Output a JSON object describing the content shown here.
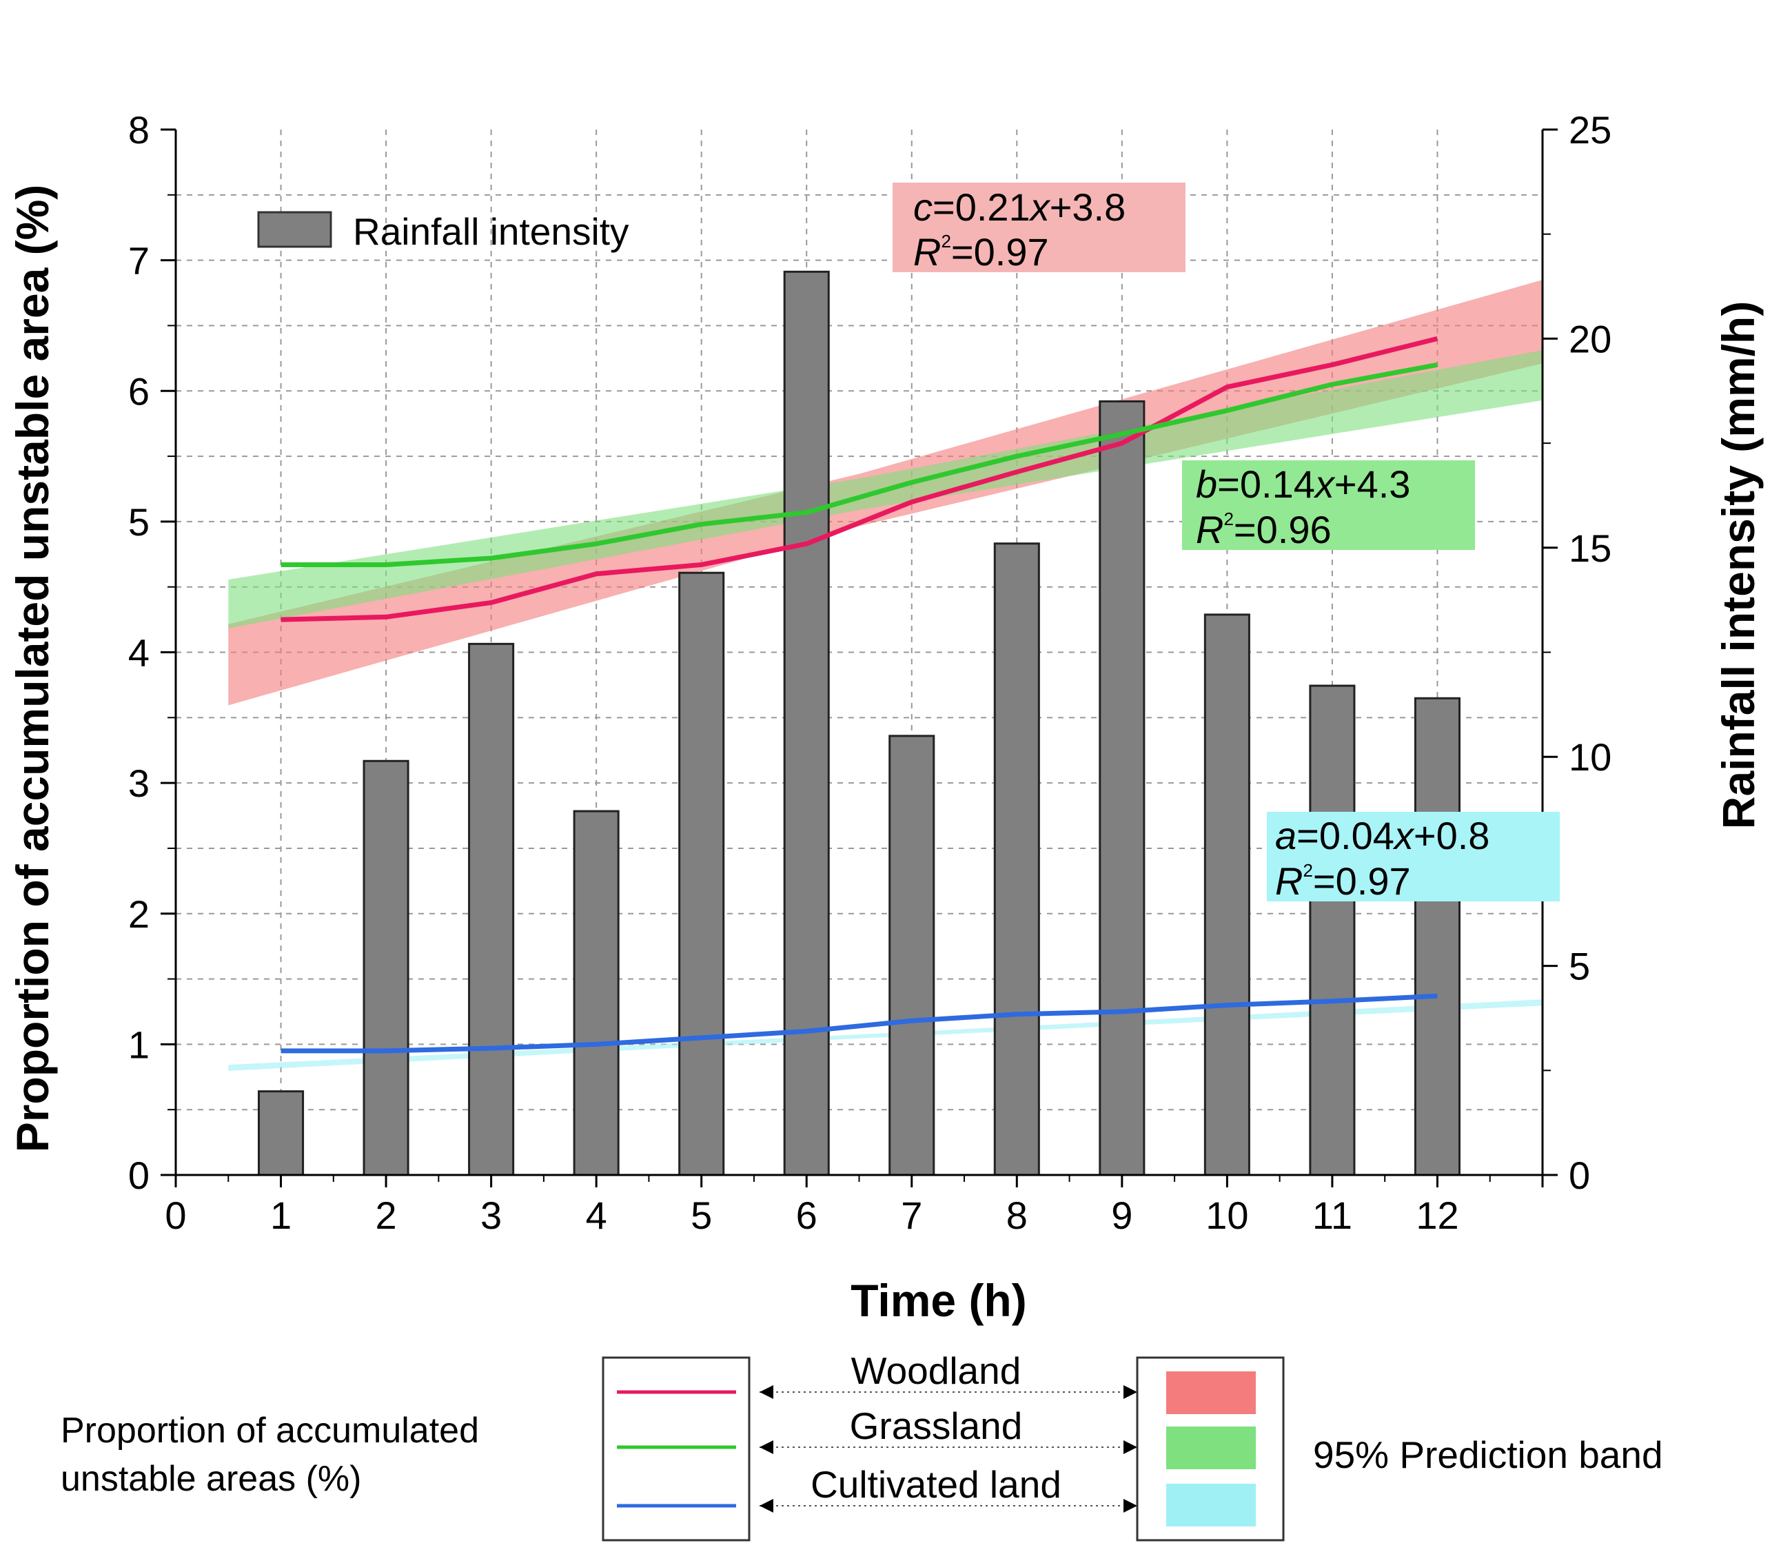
{
  "chart_data": {
    "type": "bar",
    "xlabel": "Time (h)",
    "ylabel_left": "Proportion of accumulated unstable area (%)",
    "ylabel_right": "Rainfall intensity (mm/h)",
    "xlim": [
      0,
      13
    ],
    "ylim_left": [
      0,
      8
    ],
    "ylim_right": [
      0,
      25
    ],
    "x_ticks": [
      "0",
      "1",
      "2",
      "3",
      "4",
      "5",
      "6",
      "7",
      "8",
      "9",
      "10",
      "11",
      "12"
    ],
    "y_left_ticks": [
      "0",
      "1",
      "2",
      "3",
      "4",
      "5",
      "6",
      "7",
      "8"
    ],
    "y_right_ticks": [
      "0",
      "5",
      "10",
      "15",
      "20",
      "25"
    ],
    "grid": true,
    "bars": {
      "name": "Rainfall intensity",
      "axis": "right",
      "color": "#808080",
      "x": [
        1,
        2,
        3,
        4,
        5,
        6,
        7,
        8,
        9,
        10,
        11,
        12
      ],
      "values": [
        2.0,
        9.9,
        12.7,
        8.7,
        14.4,
        21.6,
        10.5,
        15.1,
        18.5,
        13.4,
        11.7,
        11.4
      ]
    },
    "series": [
      {
        "name": "Woodland",
        "color": "#e8195e",
        "x": [
          1,
          2,
          3,
          4,
          5,
          6,
          7,
          8,
          9,
          10,
          11,
          12
        ],
        "values": [
          4.25,
          4.27,
          4.38,
          4.6,
          4.67,
          4.83,
          5.15,
          5.38,
          5.6,
          6.03,
          6.2,
          6.4
        ]
      },
      {
        "name": "Grassland",
        "color": "#2fc82f",
        "x": [
          1,
          2,
          3,
          4,
          5,
          6,
          7,
          8,
          9,
          10,
          11,
          12
        ],
        "values": [
          4.67,
          4.67,
          4.72,
          4.83,
          4.98,
          5.07,
          5.3,
          5.5,
          5.67,
          5.85,
          6.05,
          6.2
        ]
      },
      {
        "name": "Cultivated land",
        "color": "#2e6ae0",
        "x": [
          1,
          2,
          3,
          4,
          5,
          6,
          7,
          8,
          9,
          10,
          11,
          12
        ],
        "values": [
          0.95,
          0.95,
          0.97,
          1.0,
          1.05,
          1.1,
          1.18,
          1.23,
          1.25,
          1.3,
          1.33,
          1.37
        ]
      }
    ],
    "bands": [
      {
        "name": "Woodland",
        "color": "#f47c7c",
        "slope": 0.21,
        "intercept": 3.8,
        "halfwidth": 0.2,
        "xrange": [
          0.5,
          13
        ]
      },
      {
        "name": "Grassland",
        "color": "#7fe07f",
        "slope": 0.14,
        "intercept": 4.3,
        "halfwidth": 0.12,
        "xrange": [
          0.5,
          13
        ]
      },
      {
        "name": "Cultivated land",
        "color": "#9ff0f5",
        "slope": 0.04,
        "intercept": 0.8,
        "halfwidth": 0.015,
        "xrange": [
          0.5,
          13
        ]
      }
    ],
    "annotations": [
      {
        "var": "c",
        "rest": "=0.21",
        "x": "x",
        "tail": "+3.8",
        "r2_label": "R",
        "r2_sup": "2",
        "r2_value": "=0.97",
        "box_color": "#f5b5b5"
      },
      {
        "var": "b",
        "rest": "=0.14",
        "x": "x",
        "tail": "+4.3",
        "r2_label": "R",
        "r2_sup": "2",
        "r2_value": "=0.96",
        "box_color": "#93e893"
      },
      {
        "var": "a",
        "rest": "=0.04",
        "x": "x",
        "tail": "+0.8",
        "r2_label": "R",
        "r2_sup": "2",
        "r2_value": "=0.97",
        "box_color": "#a8f4f7"
      }
    ],
    "legend_top": {
      "label": "Rainfall intensity",
      "placement": "top-left"
    },
    "legend_bottom": {
      "left_text_line1": "Proportion of accumulated",
      "left_text_line2": "unstable areas (%)",
      "right_text": "95% Prediction band",
      "entries": [
        "Woodland",
        "Grassland",
        "Cultivated land"
      ]
    }
  }
}
